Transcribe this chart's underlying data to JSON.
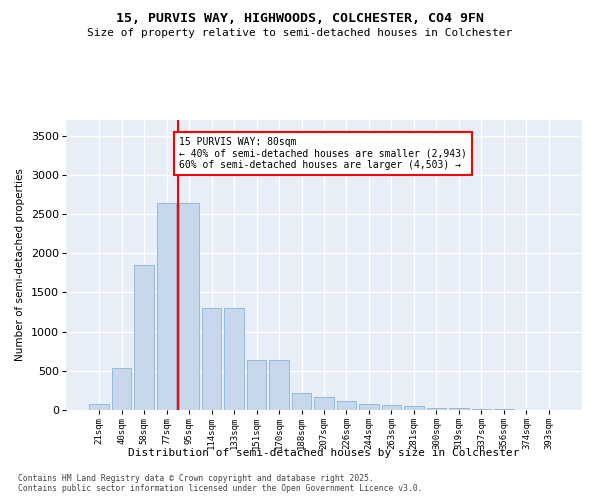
{
  "title_line1": "15, PURVIS WAY, HIGHWOODS, COLCHESTER, CO4 9FN",
  "title_line2": "Size of property relative to semi-detached houses in Colchester",
  "xlabel": "Distribution of semi-detached houses by size in Colchester",
  "ylabel": "Number of semi-detached properties",
  "categories": [
    "21sqm",
    "40sqm",
    "58sqm",
    "77sqm",
    "95sqm",
    "114sqm",
    "133sqm",
    "151sqm",
    "170sqm",
    "188sqm",
    "207sqm",
    "226sqm",
    "244sqm",
    "263sqm",
    "281sqm",
    "300sqm",
    "319sqm",
    "337sqm",
    "356sqm",
    "374sqm",
    "393sqm"
  ],
  "values": [
    80,
    530,
    1850,
    2640,
    2640,
    1300,
    1300,
    640,
    640,
    220,
    160,
    120,
    80,
    60,
    50,
    30,
    20,
    15,
    10,
    5,
    3
  ],
  "bar_color": "#c8d8ec",
  "bar_edge_color": "#8ab4d4",
  "vline_color": "red",
  "vline_pos": 3.5,
  "property_size": "80sqm",
  "pct_smaller": "40%",
  "n_smaller": "2,943",
  "pct_larger": "60%",
  "n_larger": "4,503",
  "ylim": [
    0,
    3700
  ],
  "yticks": [
    0,
    500,
    1000,
    1500,
    2000,
    2500,
    3000,
    3500
  ],
  "background_color": "#e8eef8",
  "grid_color": "white",
  "footnote1": "Contains HM Land Registry data © Crown copyright and database right 2025.",
  "footnote2": "Contains public sector information licensed under the Open Government Licence v3.0."
}
